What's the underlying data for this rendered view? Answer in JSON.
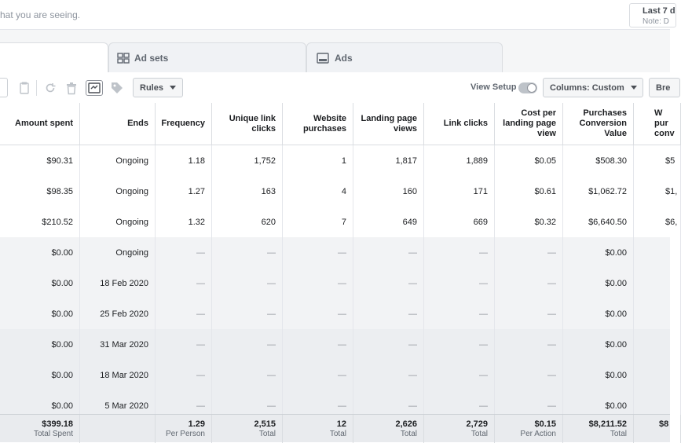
{
  "banner": {
    "message": "hat you are seeing."
  },
  "date_range": {
    "label": "Last 7 d",
    "note": "Note: D"
  },
  "tabs": [
    {
      "label": "Ad sets",
      "icon": "grid-icon"
    },
    {
      "label": "Ads",
      "icon": "ad-preview-icon"
    }
  ],
  "toolbar": {
    "rules_label": "Rules",
    "view_setup_label": "View Setup",
    "columns_label": "Columns: Custom",
    "breakdown_label": "Bre",
    "icons": [
      "duplicate-icon",
      "refresh-icon",
      "delete-icon",
      "compare-icon",
      "tag-icon"
    ]
  },
  "table": {
    "columns": [
      "Amount spent",
      "Ends",
      "Frequency",
      "Unique link clicks",
      "Website purchases",
      "Landing page views",
      "Link clicks",
      "Cost per landing page view",
      "Purchases Conversion Value",
      "W pur conv"
    ],
    "rows": [
      [
        "$90.31",
        "Ongoing",
        "1.18",
        "1,752",
        "1",
        "1,817",
        "1,889",
        "$0.05",
        "$508.30",
        "$5"
      ],
      [
        "$98.35",
        "Ongoing",
        "1.27",
        "163",
        "4",
        "160",
        "171",
        "$0.61",
        "$1,062.72",
        "$1,"
      ],
      [
        "$210.52",
        "Ongoing",
        "1.32",
        "620",
        "7",
        "649",
        "669",
        "$0.32",
        "$6,640.50",
        "$6,"
      ],
      [
        "$0.00",
        "Ongoing",
        "—",
        "—",
        "—",
        "—",
        "—",
        "—",
        "$0.00",
        ""
      ],
      [
        "$0.00",
        "18 Feb 2020",
        "—",
        "—",
        "—",
        "—",
        "—",
        "—",
        "$0.00",
        ""
      ],
      [
        "$0.00",
        "25 Feb 2020",
        "—",
        "—",
        "—",
        "—",
        "—",
        "—",
        "$0.00",
        ""
      ],
      [
        "$0.00",
        "31 Mar 2020",
        "—",
        "—",
        "—",
        "—",
        "—",
        "—",
        "$0.00",
        ""
      ],
      [
        "$0.00",
        "18 Mar 2020",
        "—",
        "—",
        "—",
        "—",
        "—",
        "—",
        "$0.00",
        ""
      ],
      [
        "$0.00",
        "5 Mar 2020",
        "—",
        "—",
        "—",
        "—",
        "—",
        "—",
        "$0.00",
        ""
      ]
    ],
    "totals": [
      {
        "value": "$399.18",
        "label": "Total Spent"
      },
      {
        "value": "",
        "label": ""
      },
      {
        "value": "1.29",
        "label": "Per Person"
      },
      {
        "value": "2,515",
        "label": "Total"
      },
      {
        "value": "12",
        "label": "Total"
      },
      {
        "value": "2,626",
        "label": "Total"
      },
      {
        "value": "2,729",
        "label": "Total"
      },
      {
        "value": "$0.15",
        "label": "Per Action"
      },
      {
        "value": "$8,211.52",
        "label": "Total"
      },
      {
        "value": "$8",
        "label": ""
      }
    ]
  },
  "colors": {
    "header_border": "#dadde1",
    "total_bg": "#e9ebee",
    "muted_text": "#606770"
  }
}
